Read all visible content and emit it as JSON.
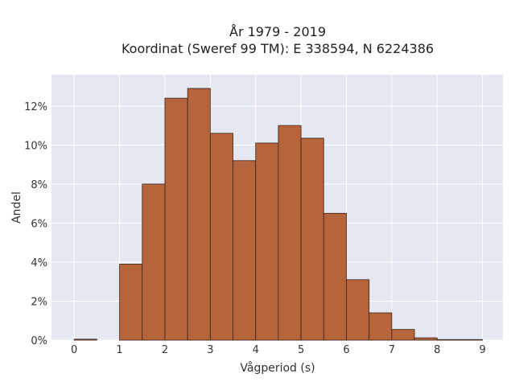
{
  "chart_data": {
    "type": "bar",
    "title": "År 1979 - 2019",
    "subtitle": "Koordinat (Sweref 99 TM): E 338594, N 6224386",
    "xlabel": "Vågperiod (s)",
    "ylabel": "Andel",
    "bin_width": 0.5,
    "bins": [
      {
        "start": 0.0,
        "value": 0.0005
      },
      {
        "start": 0.5,
        "value": 0.0
      },
      {
        "start": 1.0,
        "value": 0.039
      },
      {
        "start": 1.5,
        "value": 0.08
      },
      {
        "start": 2.0,
        "value": 0.124
      },
      {
        "start": 2.5,
        "value": 0.129
      },
      {
        "start": 3.0,
        "value": 0.106
      },
      {
        "start": 3.5,
        "value": 0.092
      },
      {
        "start": 4.0,
        "value": 0.101
      },
      {
        "start": 4.5,
        "value": 0.11
      },
      {
        "start": 5.0,
        "value": 0.1035
      },
      {
        "start": 5.5,
        "value": 0.065
      },
      {
        "start": 6.0,
        "value": 0.031
      },
      {
        "start": 6.5,
        "value": 0.014
      },
      {
        "start": 7.0,
        "value": 0.0055
      },
      {
        "start": 7.5,
        "value": 0.0012
      },
      {
        "start": 8.0,
        "value": 0.0003
      },
      {
        "start": 8.5,
        "value": 0.0003
      }
    ],
    "xlim": [
      -0.5,
      9.45
    ],
    "ylim": [
      0,
      0.136
    ],
    "x_ticks": [
      "0",
      "1",
      "2",
      "3",
      "4",
      "5",
      "6",
      "7",
      "8",
      "9"
    ],
    "y_ticks": [
      "0%",
      "2%",
      "4%",
      "6%",
      "8%",
      "10%",
      "12%"
    ],
    "grid": true,
    "colors": {
      "bar_fill": "#b5643c",
      "bar_stroke": "#3a2418",
      "plot_background": "#e6e8f1",
      "grid": "#ffffff"
    }
  }
}
